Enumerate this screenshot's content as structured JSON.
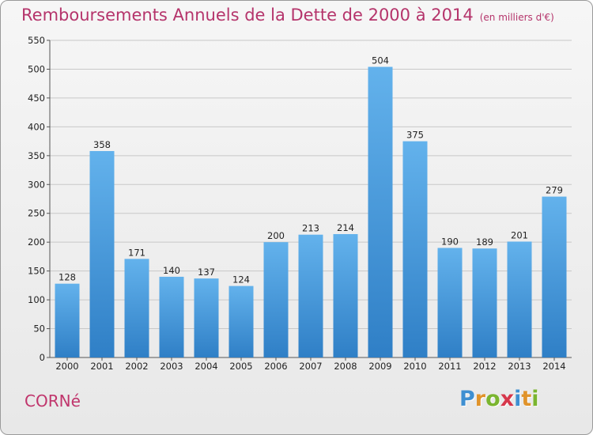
{
  "header": {
    "title": "Remboursements Annuels de la Dette de 2000 à 2014",
    "unit": "(en milliers d'€)"
  },
  "commune": "CORNé",
  "logo": {
    "text": "Proxiti",
    "letters": [
      "P",
      "r",
      "o",
      "x",
      "i",
      "t",
      "i"
    ],
    "colors": [
      "#3e8fd1",
      "#e0932a",
      "#7ab52f",
      "#d6374b",
      "#3e8fd1",
      "#e0932a",
      "#7ab52f"
    ]
  },
  "colors": {
    "bar_light": "#63b2ec",
    "bar_dark": "#2f7fc6",
    "title": "#b5346b",
    "grid": "#c8c8c8"
  },
  "chart_data": {
    "type": "bar",
    "title": "Remboursements Annuels de la Dette de 2000 à 2014",
    "subtitle": "(en milliers d'€)",
    "categories": [
      "2000",
      "2001",
      "2002",
      "2003",
      "2004",
      "2005",
      "2006",
      "2007",
      "2008",
      "2009",
      "2010",
      "2011",
      "2012",
      "2013",
      "2014"
    ],
    "values": [
      128,
      358,
      171,
      140,
      137,
      124,
      200,
      213,
      214,
      504,
      375,
      190,
      189,
      201,
      279
    ],
    "ylim": [
      0,
      550
    ],
    "yticks": [
      0,
      50,
      100,
      150,
      200,
      250,
      300,
      350,
      400,
      450,
      500,
      550
    ],
    "grid": true,
    "legend": "none"
  }
}
